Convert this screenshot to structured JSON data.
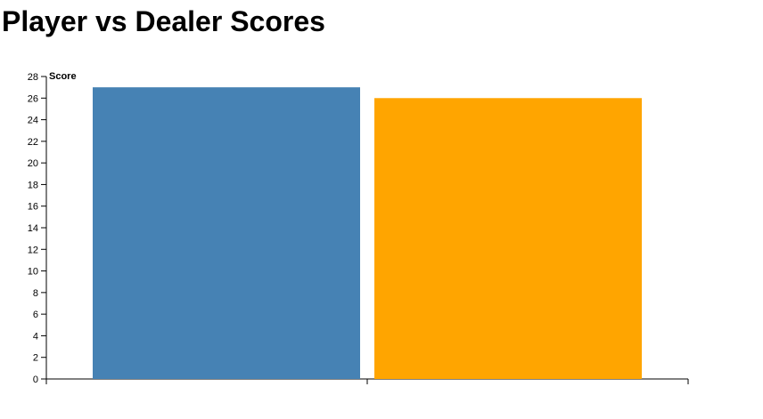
{
  "title": "Player vs Dealer Scores",
  "chart_data": {
    "type": "bar",
    "title": "Player vs Dealer Scores",
    "xlabel": "",
    "ylabel": "Score",
    "categories": [
      "",
      ""
    ],
    "values": [
      27,
      26
    ],
    "colors": [
      "#4682b4",
      "#ffa500"
    ],
    "ylim": [
      0,
      28
    ],
    "y_ticks": [
      "0",
      "2",
      "4",
      "6",
      "8",
      "10",
      "12",
      "14",
      "16",
      "18",
      "20",
      "22",
      "24",
      "26",
      "28"
    ],
    "grid": false,
    "legend": "none"
  }
}
